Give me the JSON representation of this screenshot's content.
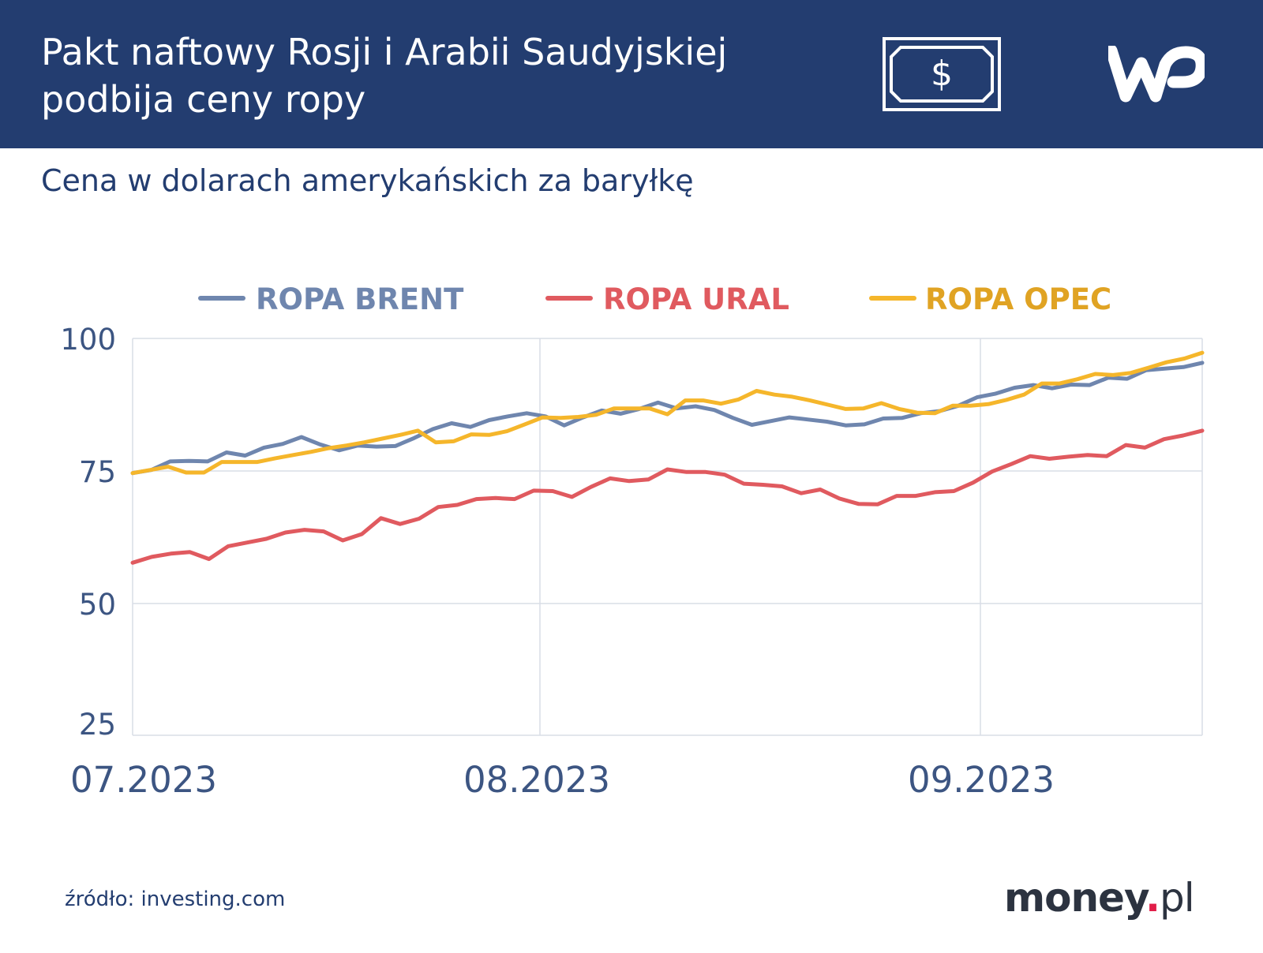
{
  "header": {
    "title_line1": "Pakt naftowy Rosji i Arabii Saudyjskiej",
    "title_line2": "podbija ceny ropy",
    "bill_symbol": "$",
    "logo_text": "WP",
    "background_color": "#233d70"
  },
  "subtitle": "Cena w dolarach amerykańskich za baryłkę",
  "footer": {
    "source": "źródło: investing.com",
    "brand_name": "money",
    "brand_dot": ".",
    "brand_tld": "pl"
  },
  "chart_data": {
    "type": "line",
    "title": "Pakt naftowy Rosji i Arabii Saudyjskiej podbija ceny ropy",
    "ylabel": "Cena w dolarach amerykańskich za baryłkę",
    "xlabel": "",
    "ylim": [
      25,
      100
    ],
    "yticks": [
      "100",
      "75",
      "50",
      "25"
    ],
    "x_ticks": [
      {
        "label": "07.2023",
        "index": 0
      },
      {
        "label": "08.2023",
        "index": 22
      },
      {
        "label": "09.2023",
        "index": 46
      }
    ],
    "legend_position": "top",
    "grid": true,
    "series": [
      {
        "name": "ROPA BRENT",
        "color": "#6f86ae",
        "values": [
          74.6,
          75.2,
          76.8,
          76.9,
          76.8,
          78.5,
          77.9,
          79.4,
          80.1,
          81.4,
          80.0,
          78.9,
          79.8,
          79.6,
          79.7,
          81.2,
          82.9,
          84.0,
          83.3,
          84.6,
          85.3,
          85.9,
          85.3,
          83.6,
          85.1,
          86.4,
          85.8,
          86.7,
          87.9,
          86.8,
          87.2,
          86.5,
          85.0,
          83.7,
          84.4,
          85.1,
          84.7,
          84.3,
          83.6,
          83.8,
          84.9,
          85.0,
          85.9,
          86.3,
          87.3,
          88.9,
          89.6,
          90.7,
          91.2,
          90.6,
          91.3,
          91.2,
          92.6,
          92.4,
          94.0,
          94.3,
          94.6,
          95.4
        ]
      },
      {
        "name": "ROPA URAL",
        "color": "#e05a5f",
        "values": [
          57.7,
          58.8,
          59.4,
          59.7,
          58.4,
          60.8,
          61.5,
          62.2,
          63.4,
          63.9,
          63.6,
          61.9,
          63.1,
          66.1,
          65.0,
          66.0,
          68.2,
          68.6,
          69.7,
          69.9,
          69.7,
          71.3,
          71.2,
          70.1,
          72.0,
          73.6,
          73.1,
          73.4,
          75.3,
          74.8,
          74.8,
          74.3,
          72.6,
          72.4,
          72.1,
          70.8,
          71.5,
          69.8,
          68.8,
          68.7,
          70.3,
          70.3,
          71.0,
          71.2,
          72.8,
          74.9,
          76.3,
          77.8,
          77.3,
          77.7,
          78.0,
          77.8,
          79.9,
          79.4,
          81.0,
          81.7,
          82.6
        ]
      },
      {
        "name": "ROPA OPEC",
        "color": "#f5b62b",
        "values": [
          74.6,
          75.2,
          75.8,
          74.7,
          74.7,
          76.7,
          76.7,
          76.7,
          77.4,
          78.0,
          78.6,
          79.3,
          79.8,
          80.4,
          81.1,
          81.8,
          82.6,
          80.4,
          80.6,
          81.9,
          81.8,
          82.5,
          83.8,
          85.1,
          85.0,
          85.2,
          85.6,
          86.8,
          86.8,
          86.8,
          85.7,
          88.3,
          88.3,
          87.7,
          88.5,
          90.1,
          89.4,
          89.0,
          88.3,
          87.5,
          86.7,
          86.8,
          87.8,
          86.7,
          86.0,
          85.9,
          87.3,
          87.3,
          87.6,
          88.4,
          89.4,
          91.5,
          91.5,
          92.3,
          93.3,
          93.1,
          93.5,
          94.5,
          95.5,
          96.2,
          97.3
        ]
      }
    ]
  }
}
